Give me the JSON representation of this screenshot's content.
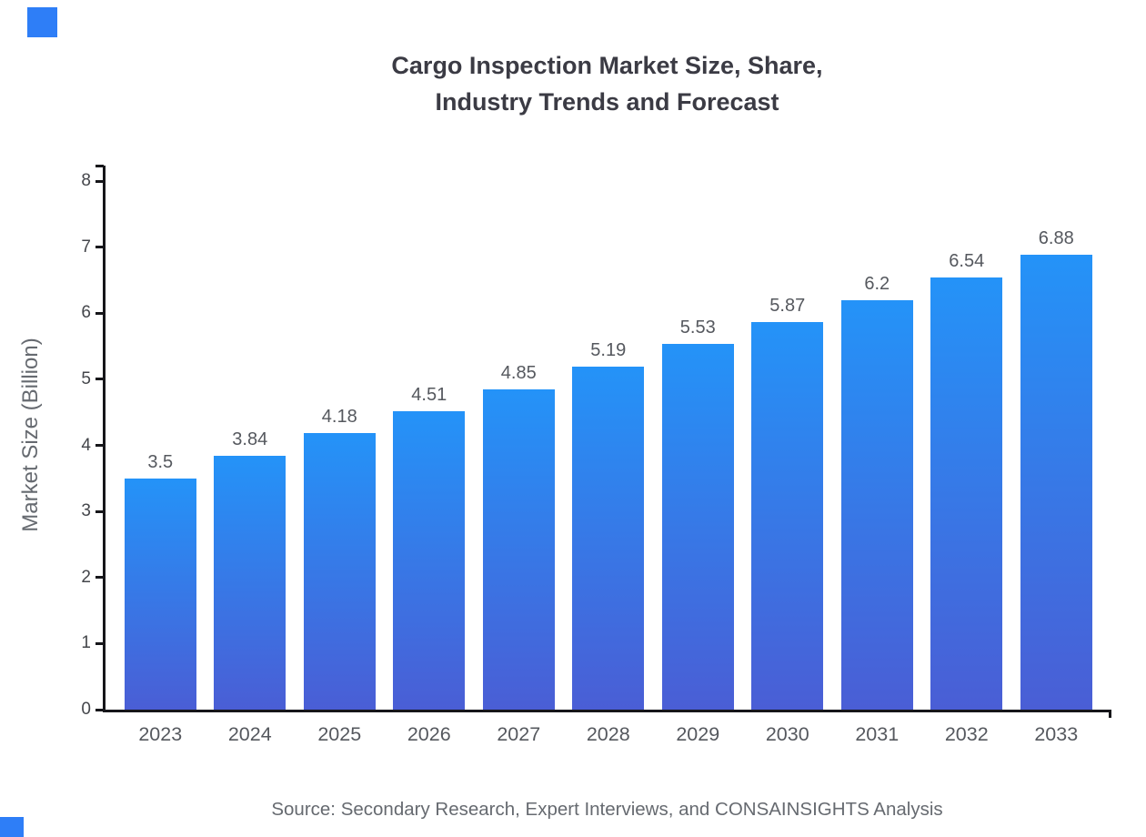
{
  "page": {
    "title_line1": "Cargo Inspection Market Size, Share,",
    "title_line2": "Industry Trends and Forecast",
    "source": "Source: Secondary Research, Expert Interviews, and CONSAINSIGHTS Analysis"
  },
  "chart_data": {
    "type": "bar",
    "title": "Cargo Inspection Market Size, Share, Industry Trends and Forecast",
    "categories": [
      "2023",
      "2024",
      "2025",
      "2026",
      "2027",
      "2028",
      "2029",
      "2030",
      "2031",
      "2032",
      "2033"
    ],
    "values": [
      3.5,
      3.84,
      4.18,
      4.51,
      4.85,
      5.19,
      5.53,
      5.87,
      6.2,
      6.54,
      6.88
    ],
    "value_labels": [
      "3.5",
      "3.84",
      "4.18",
      "4.51",
      "4.85",
      "5.19",
      "5.53",
      "5.87",
      "6.2",
      "6.54",
      "6.88"
    ],
    "xlabel": "",
    "ylabel": "Market Size (Billion)",
    "ylim": [
      0,
      8
    ],
    "y_ticks": [
      0,
      1,
      2,
      3,
      4,
      5,
      6,
      7,
      8
    ],
    "grid": false,
    "legend": "none",
    "colors": {
      "bar_gradient_top": "#2493f8",
      "bar_gradient_bottom": "#4a5ed5",
      "accent_square": "#2e7ef7"
    }
  }
}
